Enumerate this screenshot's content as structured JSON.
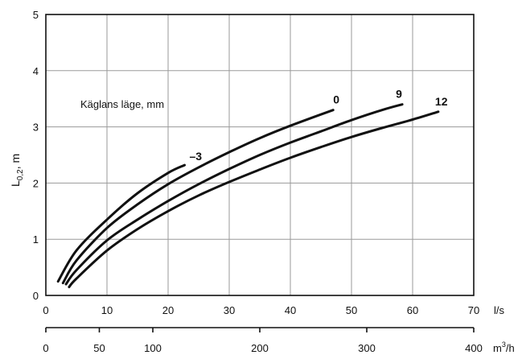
{
  "chart_data": {
    "type": "line",
    "ylabel": "L0,2, m",
    "ylabel_main": "L",
    "ylabel_sub": "0,2",
    "ylabel_rest": ", m",
    "annotation": "Käglans läge, mm",
    "xlim": [
      0,
      70
    ],
    "ylim": [
      0,
      5
    ],
    "x_ticks": [
      "0",
      "10",
      "20",
      "30",
      "40",
      "50",
      "60",
      "70"
    ],
    "y_ticks": [
      "0",
      "1",
      "2",
      "3",
      "4",
      "5"
    ],
    "x_unit": "l/s",
    "x2_ticks": [
      "0",
      "50",
      "100",
      "200",
      "300",
      "400"
    ],
    "x2_tick_values": [
      0,
      50,
      100,
      200,
      300,
      400
    ],
    "x2_unit_main": "m",
    "x2_unit_sup": "3",
    "x2_unit_rest": "/h",
    "x2_lim": [
      0,
      400
    ],
    "grid": true,
    "series": [
      {
        "name": "–3",
        "x": [
          2,
          5,
          10,
          15,
          20,
          22.7
        ],
        "y": [
          0.25,
          0.8,
          1.35,
          1.82,
          2.18,
          2.32
        ]
      },
      {
        "name": "0",
        "x": [
          2.8,
          5,
          10,
          15,
          20,
          25,
          30,
          35,
          40,
          47
        ],
        "y": [
          0.22,
          0.62,
          1.2,
          1.62,
          1.98,
          2.28,
          2.55,
          2.8,
          3.02,
          3.3
        ]
      },
      {
        "name": "9",
        "x": [
          3.3,
          5,
          10,
          15,
          20,
          25,
          30,
          35,
          40,
          45,
          50,
          55,
          58.3
        ],
        "y": [
          0.2,
          0.45,
          0.98,
          1.35,
          1.68,
          1.98,
          2.25,
          2.5,
          2.72,
          2.92,
          3.12,
          3.3,
          3.4
        ]
      },
      {
        "name": "12",
        "x": [
          3.8,
          5,
          10,
          15,
          20,
          25,
          30,
          35,
          40,
          45,
          50,
          55,
          60,
          64.2
        ],
        "y": [
          0.15,
          0.3,
          0.8,
          1.18,
          1.5,
          1.78,
          2.02,
          2.24,
          2.45,
          2.64,
          2.82,
          2.98,
          3.13,
          3.27
        ]
      }
    ]
  }
}
